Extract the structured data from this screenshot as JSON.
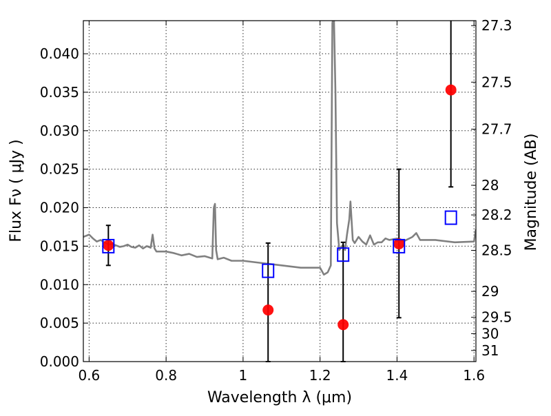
{
  "chart_data": {
    "type": "scatter",
    "xlabel": "Wavelength  λ (μm)",
    "ylabel": "Flux  Fν  ( μJy )",
    "y2label": "Magnitude (AB)",
    "xlim": [
      0.585,
      1.605
    ],
    "ylim": [
      0.0,
      0.0443
    ],
    "grid": true,
    "x_ticks": [
      0.6,
      0.8,
      1.0,
      1.2,
      1.4,
      1.6
    ],
    "x_tick_labels": [
      "0.6",
      "0.8",
      "1",
      "1.2",
      "1.4",
      "1.6"
    ],
    "y_ticks": [
      0.0,
      0.005,
      0.01,
      0.015,
      0.02,
      0.025,
      0.03,
      0.035,
      0.04
    ],
    "y_tick_labels": [
      "0.000",
      "0.005",
      "0.010",
      "0.015",
      "0.020",
      "0.025",
      "0.030",
      "0.035",
      "0.040"
    ],
    "y2_ticks": [
      27.3,
      27.5,
      27.7,
      28.0,
      28.2,
      28.5,
      29.0,
      29.5,
      30.0,
      31.0
    ],
    "y2_tick_labels": [
      "27.3",
      "27.5",
      "27.7",
      "28",
      "28.2",
      "28.5",
      "29",
      "29.5",
      "30",
      "31"
    ],
    "series": [
      {
        "role": "template spectrum",
        "color": "#808080",
        "x": [
          0.585,
          0.6,
          0.61,
          0.62,
          0.63,
          0.64,
          0.65,
          0.66,
          0.67,
          0.68,
          0.69,
          0.7,
          0.71,
          0.72,
          0.73,
          0.74,
          0.75,
          0.76,
          0.765,
          0.77,
          0.775,
          0.8,
          0.82,
          0.84,
          0.86,
          0.88,
          0.9,
          0.92,
          0.924,
          0.927,
          0.93,
          0.934,
          0.95,
          0.97,
          1.0,
          1.05,
          1.1,
          1.15,
          1.2,
          1.21,
          1.22,
          1.228,
          1.232,
          1.236,
          1.24,
          1.244,
          1.25,
          1.26,
          1.265,
          1.27,
          1.276,
          1.279,
          1.285,
          1.29,
          1.3,
          1.31,
          1.32,
          1.33,
          1.34,
          1.35,
          1.36,
          1.37,
          1.38,
          1.4,
          1.42,
          1.44,
          1.45,
          1.46,
          1.5,
          1.55,
          1.6,
          1.605
        ],
        "y": [
          0.0162,
          0.0165,
          0.016,
          0.0156,
          0.0158,
          0.0155,
          0.0152,
          0.0153,
          0.0151,
          0.0149,
          0.015,
          0.0152,
          0.0149,
          0.0148,
          0.0151,
          0.0147,
          0.015,
          0.0148,
          0.0165,
          0.0147,
          0.0143,
          0.0143,
          0.0141,
          0.0138,
          0.014,
          0.0136,
          0.0137,
          0.0134,
          0.02,
          0.0205,
          0.0145,
          0.0133,
          0.0135,
          0.0131,
          0.0131,
          0.0128,
          0.0125,
          0.0122,
          0.0122,
          0.0113,
          0.0116,
          0.0125,
          0.044,
          0.045,
          0.035,
          0.018,
          0.0145,
          0.0152,
          0.0145,
          0.0165,
          0.0185,
          0.0208,
          0.0158,
          0.0154,
          0.0162,
          0.0156,
          0.0152,
          0.0164,
          0.0152,
          0.0155,
          0.0155,
          0.016,
          0.0158,
          0.016,
          0.0157,
          0.0162,
          0.0167,
          0.0158,
          0.0158,
          0.0155,
          0.0156,
          0.0172
        ]
      },
      {
        "role": "model photometry",
        "marker": "open-square",
        "color": "#0000ff",
        "x": [
          0.65,
          1.065,
          1.26,
          1.405,
          1.54
        ],
        "y": [
          0.015,
          0.0118,
          0.0139,
          0.015,
          0.0187
        ]
      },
      {
        "role": "measured flux",
        "marker": "filled-circle",
        "color": "#ff0000",
        "x": [
          0.65,
          1.065,
          1.26,
          1.405,
          1.54
        ],
        "y": [
          0.0151,
          0.0067,
          0.0048,
          0.0153,
          0.0353
        ],
        "yerr_low": [
          0.0026,
          0.0067,
          0.0048,
          0.0096,
          0.0126
        ],
        "yerr_high": [
          0.0026,
          0.0087,
          0.0107,
          0.0097,
          0.0092
        ]
      }
    ]
  }
}
